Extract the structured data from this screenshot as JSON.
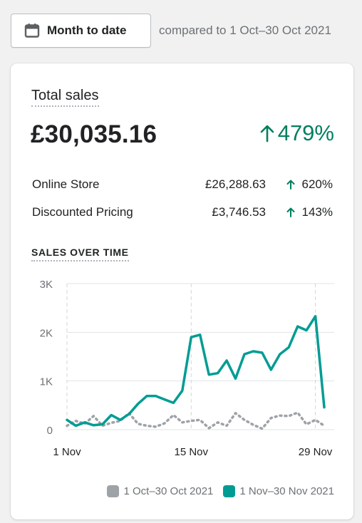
{
  "toolbar": {
    "date_range_label": "Month to date",
    "date_icon": "calendar-icon",
    "compare_text": "compared to 1 Oct–30 Oct 2021"
  },
  "card": {
    "title": "Total sales",
    "total_value": "£30,035.16",
    "total_change": "479%",
    "breakdown": [
      {
        "name": "Online Store",
        "value": "£26,288.63",
        "change": "620%"
      },
      {
        "name": "Discounted Pricing",
        "value": "£3,746.53",
        "change": "143%"
      }
    ],
    "section_title": "SALES OVER TIME"
  },
  "colors": {
    "positive": "#007f5f",
    "current_series": "#009c93",
    "previous_series": "#9ea3a8"
  },
  "chart_data": {
    "type": "line",
    "title": "SALES OVER TIME",
    "x_tick_labels": [
      "1 Nov",
      "15 Nov",
      "29 Nov"
    ],
    "x_tick_days": [
      1,
      15,
      29
    ],
    "x_range": [
      1,
      30
    ],
    "y_tick_labels": [
      "0",
      "1K",
      "2K",
      "3K"
    ],
    "y_ticks": [
      0,
      1000,
      2000,
      3000
    ],
    "ylim": [
      0,
      3000
    ],
    "grid": true,
    "legend_position": "bottom-right",
    "series": [
      {
        "name": "1 Oct–30 Oct 2021",
        "style": "dotted",
        "color": "#9ea3a8",
        "x": [
          1,
          2,
          3,
          4,
          5,
          6,
          7,
          8,
          9,
          10,
          11,
          12,
          13,
          14,
          15,
          16,
          17,
          18,
          19,
          20,
          21,
          22,
          23,
          24,
          25,
          26,
          27,
          28,
          29,
          30
        ],
        "values": [
          80,
          180,
          120,
          280,
          80,
          140,
          180,
          340,
          120,
          80,
          60,
          130,
          300,
          150,
          180,
          200,
          30,
          150,
          80,
          340,
          200,
          100,
          20,
          240,
          290,
          280,
          350,
          110,
          200,
          80
        ]
      },
      {
        "name": "1 Nov–30 Nov 2021",
        "style": "solid",
        "color": "#009c93",
        "x": [
          1,
          2,
          3,
          4,
          5,
          6,
          7,
          8,
          9,
          10,
          11,
          12,
          13,
          14,
          15,
          16,
          17,
          18,
          19,
          20,
          21,
          22,
          23,
          24,
          25,
          26,
          27,
          28,
          29,
          30
        ],
        "values": [
          200,
          80,
          150,
          90,
          110,
          300,
          200,
          320,
          530,
          690,
          690,
          620,
          550,
          800,
          1900,
          1950,
          1130,
          1160,
          1420,
          1050,
          1550,
          1610,
          1580,
          1230,
          1550,
          1690,
          2120,
          2040,
          2330,
          460
        ]
      }
    ]
  }
}
